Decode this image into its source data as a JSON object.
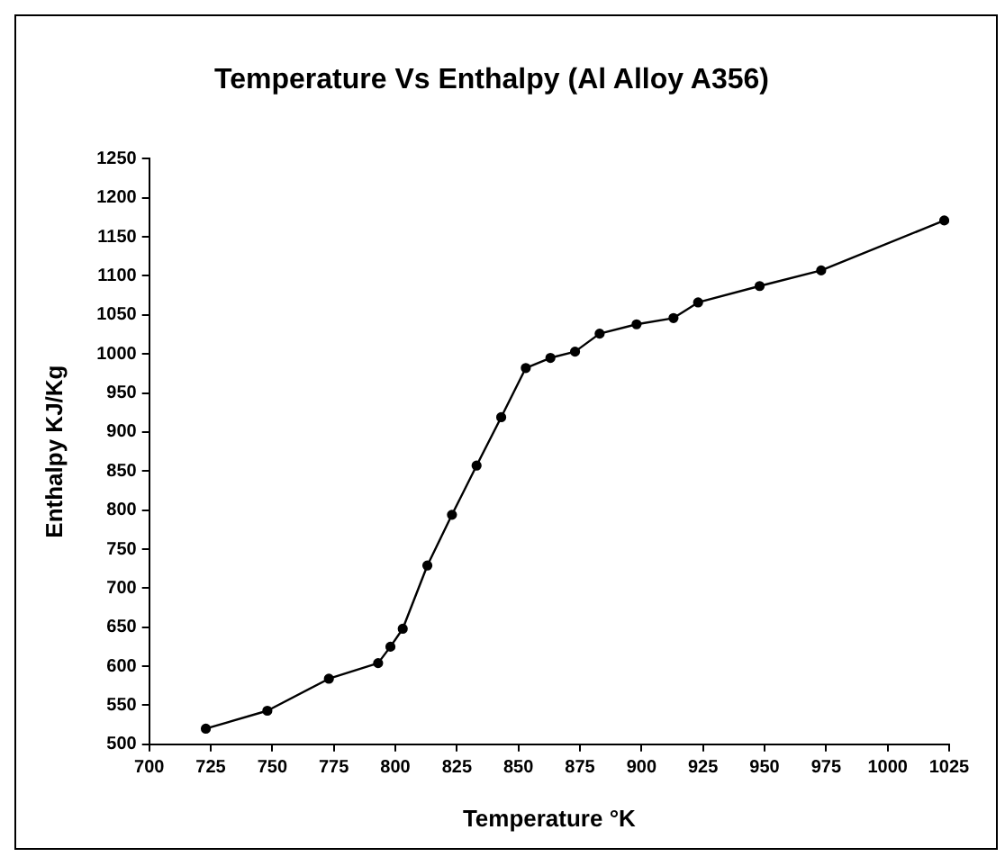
{
  "chart_data": {
    "type": "line",
    "title": "Temperature Vs Enthalpy (Al Alloy A356)",
    "xlabel": "Temperature °K",
    "ylabel": "Enthalpy KJ/Kg",
    "x": [
      723,
      748,
      773,
      793,
      798,
      803,
      813,
      823,
      833,
      843,
      853,
      863,
      873,
      883,
      898,
      913,
      923,
      948,
      973,
      1023
    ],
    "series": [
      {
        "color": "#000000",
        "values": [
          520,
          543,
          584,
          604,
          625,
          648,
          729,
          794,
          857,
          919,
          982,
          995,
          1003,
          1026,
          1038,
          1046,
          1066,
          1087,
          1107,
          1171
        ]
      }
    ],
    "xlim": [
      700,
      1025
    ],
    "xticks": [
      700,
      725,
      750,
      775,
      800,
      825,
      850,
      875,
      900,
      925,
      950,
      975,
      1000,
      1025
    ],
    "ylim": [
      500,
      1250
    ],
    "yticks": [
      500,
      550,
      600,
      650,
      700,
      750,
      800,
      850,
      900,
      950,
      1000,
      1050,
      1100,
      1150,
      1200,
      1250
    ],
    "grid": false,
    "legend": false,
    "marker": "circle",
    "line_style": "solid"
  }
}
